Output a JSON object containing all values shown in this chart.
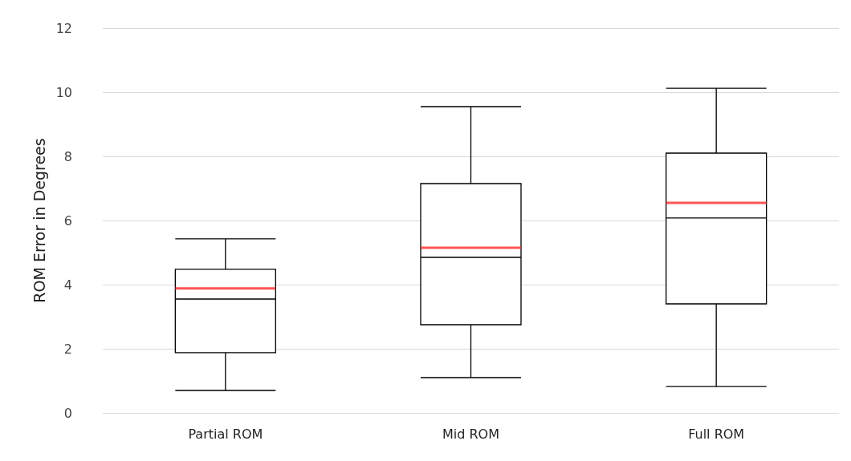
{
  "chart_data": {
    "type": "box",
    "ylabel": "ROM Error in Degrees",
    "categories": [
      "Partial ROM",
      "Mid ROM",
      "Full ROM"
    ],
    "series": [
      {
        "color": "#000000",
        "boxes": [
          {
            "low": 0.7,
            "q1": 1.88,
            "median": 3.55,
            "q3": 4.48,
            "high": 5.43,
            "mean": 3.88
          },
          {
            "low": 1.1,
            "q1": 2.75,
            "median": 4.85,
            "q3": 7.15,
            "high": 9.55,
            "mean": 5.15
          },
          {
            "low": 0.82,
            "q1": 3.4,
            "median": 6.08,
            "q3": 8.1,
            "high": 10.12,
            "mean": 6.55
          }
        ]
      }
    ],
    "ylim": [
      0,
      12
    ],
    "yticks": [
      0,
      2,
      4,
      6,
      8,
      10,
      12
    ],
    "grid": "y"
  }
}
